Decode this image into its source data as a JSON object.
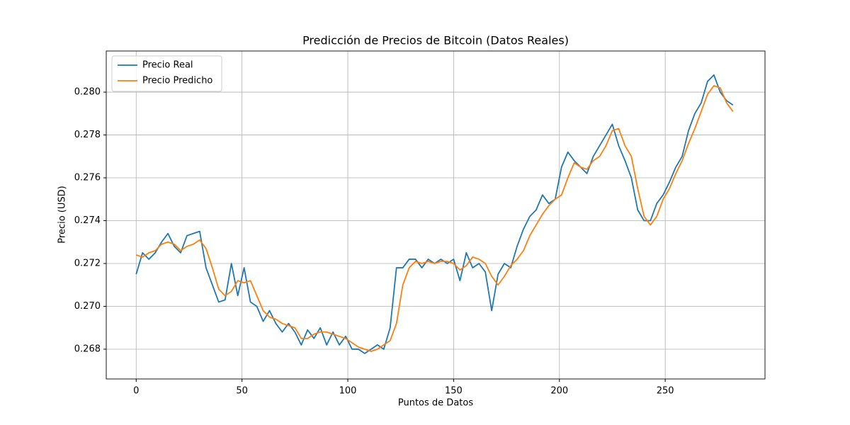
{
  "chart_data": {
    "type": "line",
    "title": "Predicción de Precios de Bitcoin (Datos Reales)",
    "xlabel": "Puntos de Datos",
    "ylabel": "Precio (USD)",
    "x": [
      0,
      3,
      6,
      9,
      12,
      15,
      18,
      21,
      24,
      27,
      30,
      33,
      36,
      39,
      42,
      45,
      48,
      51,
      54,
      57,
      60,
      63,
      66,
      69,
      72,
      75,
      78,
      81,
      84,
      87,
      90,
      93,
      96,
      99,
      102,
      105,
      108,
      111,
      114,
      117,
      120,
      123,
      126,
      129,
      132,
      135,
      138,
      141,
      144,
      147,
      150,
      153,
      156,
      159,
      162,
      165,
      168,
      171,
      174,
      177,
      180,
      183,
      186,
      189,
      192,
      195,
      198,
      201,
      204,
      207,
      210,
      213,
      216,
      219,
      222,
      225,
      228,
      231,
      234,
      237,
      240,
      243,
      246,
      249,
      252,
      255,
      258,
      261,
      264,
      267,
      270,
      273,
      276,
      279,
      282
    ],
    "series": [
      {
        "name": "Precio Real",
        "color": "#1f77b4",
        "values": [
          0.2715,
          0.2725,
          0.2722,
          0.2725,
          0.273,
          0.2734,
          0.2728,
          0.2725,
          0.2733,
          0.2734,
          0.2735,
          0.2718,
          0.271,
          0.2702,
          0.2703,
          0.272,
          0.2705,
          0.2718,
          0.2702,
          0.27,
          0.2693,
          0.2698,
          0.2692,
          0.2688,
          0.2692,
          0.2688,
          0.2682,
          0.2689,
          0.2685,
          0.269,
          0.2682,
          0.2688,
          0.2682,
          0.2686,
          0.268,
          0.268,
          0.2678,
          0.268,
          0.2682,
          0.268,
          0.269,
          0.2718,
          0.2718,
          0.2722,
          0.2722,
          0.2718,
          0.2722,
          0.272,
          0.2722,
          0.272,
          0.2722,
          0.2712,
          0.2725,
          0.2718,
          0.272,
          0.2716,
          0.2698,
          0.2715,
          0.272,
          0.2718,
          0.2728,
          0.2736,
          0.2742,
          0.2745,
          0.2752,
          0.2748,
          0.275,
          0.2765,
          0.2772,
          0.2768,
          0.2765,
          0.2762,
          0.277,
          0.2775,
          0.278,
          0.2785,
          0.2775,
          0.2768,
          0.276,
          0.2745,
          0.274,
          0.274,
          0.2748,
          0.2752,
          0.2758,
          0.2765,
          0.277,
          0.2782,
          0.279,
          0.2795,
          0.2805,
          0.2808,
          0.28,
          0.2796,
          0.2794
        ]
      },
      {
        "name": "Precio Predicho",
        "color": "#ff7f0e",
        "values": [
          0.2724,
          0.2723,
          0.2725,
          0.2726,
          0.2729,
          0.273,
          0.2729,
          0.2726,
          0.2728,
          0.2729,
          0.2731,
          0.2727,
          0.2718,
          0.2708,
          0.2705,
          0.2707,
          0.2712,
          0.2711,
          0.2712,
          0.2705,
          0.2698,
          0.2695,
          0.2694,
          0.2692,
          0.2691,
          0.269,
          0.2685,
          0.2685,
          0.2687,
          0.2688,
          0.2688,
          0.2687,
          0.2686,
          0.2685,
          0.2683,
          0.2681,
          0.268,
          0.2679,
          0.268,
          0.2682,
          0.2684,
          0.2692,
          0.271,
          0.2718,
          0.2721,
          0.272,
          0.2721,
          0.272,
          0.2721,
          0.2721,
          0.272,
          0.2717,
          0.2719,
          0.2723,
          0.2722,
          0.272,
          0.2714,
          0.271,
          0.2714,
          0.2719,
          0.2722,
          0.2726,
          0.2733,
          0.2738,
          0.2743,
          0.2747,
          0.275,
          0.2752,
          0.276,
          0.2767,
          0.2765,
          0.2764,
          0.2768,
          0.277,
          0.2775,
          0.2782,
          0.2783,
          0.2775,
          0.277,
          0.2755,
          0.2742,
          0.2738,
          0.2742,
          0.275,
          0.2755,
          0.2762,
          0.2768,
          0.2776,
          0.2783,
          0.2791,
          0.2799,
          0.2803,
          0.2802,
          0.2795,
          0.2791
        ]
      }
    ],
    "xlim": [
      -14.15,
      297.15
    ],
    "xticks": [
      0,
      50,
      100,
      150,
      200,
      250
    ],
    "ylim": [
      0.26661,
      0.28192
    ],
    "yticks": [
      0.268,
      {
        "value": 0.27,
        "label": "0.270"
      },
      0.272,
      0.274,
      0.276,
      0.278,
      {
        "value": 0.28,
        "label": "0.280"
      }
    ],
    "grid": true,
    "legend": "upper left"
  }
}
